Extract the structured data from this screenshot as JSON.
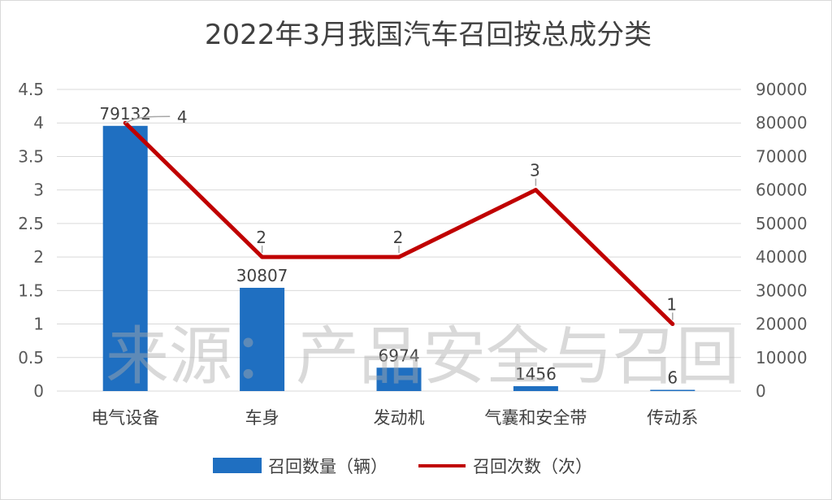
{
  "chart_data": {
    "type": "bar",
    "title": "2022年3月我国汽车召回按总成分类",
    "categories": [
      "电气设备",
      "车身",
      "发动机",
      "气囊和安全带",
      "传动系"
    ],
    "series": [
      {
        "name": "召回数量（辆）",
        "type": "bar",
        "axis": "right",
        "values": [
          79132,
          30807,
          6974,
          1456,
          6
        ],
        "color": "#1f6fc1"
      },
      {
        "name": "召回次数（次）",
        "type": "line",
        "axis": "left",
        "values": [
          4,
          2,
          2,
          3,
          1
        ],
        "color": "#c00000"
      }
    ],
    "y_left": {
      "min": 0,
      "max": 4.5,
      "step": 0.5,
      "ticks": [
        "0",
        "0.5",
        "1",
        "1.5",
        "2",
        "2.5",
        "3",
        "3.5",
        "4",
        "4.5"
      ]
    },
    "y_right": {
      "min": 0,
      "max": 90000,
      "step": 10000,
      "ticks": [
        "0",
        "10000",
        "20000",
        "30000",
        "40000",
        "50000",
        "60000",
        "70000",
        "80000",
        "90000"
      ]
    },
    "grid": true,
    "legend": "bottom",
    "watermark": "来源：产品安全与召回"
  }
}
